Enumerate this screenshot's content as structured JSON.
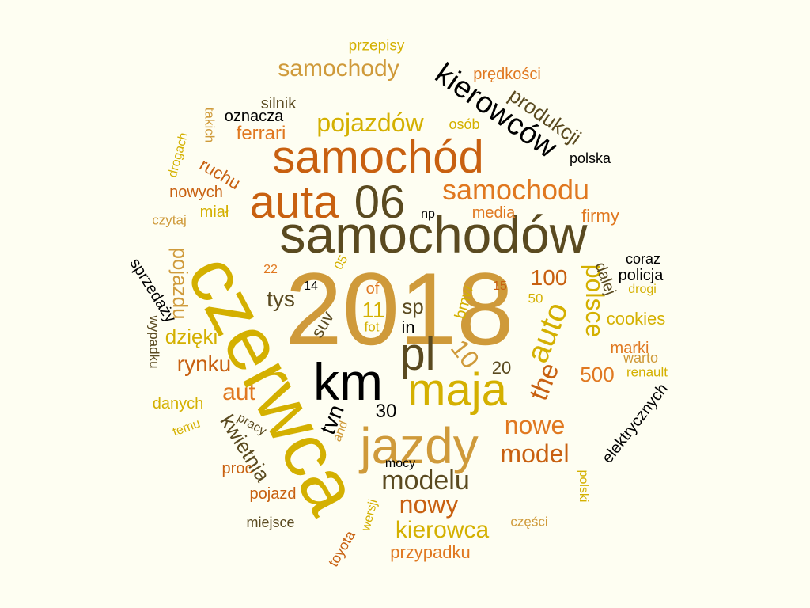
{
  "colors": {
    "background": "#fefef2",
    "palette": [
      "#d4b000",
      "#cf8a30",
      "#c86010",
      "#e07820",
      "#5a4a20",
      "#000000"
    ]
  },
  "words": [
    {
      "text": "2018",
      "color": "#cf9a3a"
    },
    {
      "text": "czerwca",
      "color": "#d4b000"
    },
    {
      "text": "samochodów",
      "color": "#5a4a20"
    },
    {
      "text": "km",
      "color": "#000000"
    },
    {
      "text": "jazdy",
      "color": "#cf9a3a"
    },
    {
      "text": "samochód",
      "color": "#c86010"
    },
    {
      "text": "maja",
      "color": "#d4b000"
    },
    {
      "text": "auta",
      "color": "#c86010"
    },
    {
      "text": "pl",
      "color": "#5a4a20"
    },
    {
      "text": "06",
      "color": "#5a4a20"
    },
    {
      "text": "kierowców",
      "color": "#000000"
    },
    {
      "text": "samochody",
      "color": "#cf9a3a"
    },
    {
      "text": "pojazdów",
      "color": "#d4b000"
    },
    {
      "text": "samochodu",
      "color": "#e07820"
    },
    {
      "text": "auto",
      "color": "#d4b000"
    },
    {
      "text": "polsce",
      "color": "#d4b000"
    },
    {
      "text": "modelu",
      "color": "#5a4a20"
    },
    {
      "text": "model",
      "color": "#c86010"
    },
    {
      "text": "nowe",
      "color": "#e07820"
    },
    {
      "text": "nowy",
      "color": "#c86010"
    },
    {
      "text": "kierowca",
      "color": "#d4b000"
    },
    {
      "text": "the",
      "color": "#c86010"
    },
    {
      "text": "kwietnia",
      "color": "#5a4a20"
    },
    {
      "text": "aut",
      "color": "#e07820"
    },
    {
      "text": "rynku",
      "color": "#c86010"
    },
    {
      "text": "dzięki",
      "color": "#d4b000"
    },
    {
      "text": "pojazdu",
      "color": "#cf9a3a"
    },
    {
      "text": "tys",
      "color": "#5a4a20"
    },
    {
      "text": "sp",
      "color": "#5a4a20"
    },
    {
      "text": "11",
      "color": "#d4b000"
    },
    {
      "text": "10",
      "color": "#cf9a3a"
    },
    {
      "text": "100",
      "color": "#c86010"
    },
    {
      "text": "tvn",
      "color": "#000000"
    },
    {
      "text": "30",
      "color": "#000000"
    },
    {
      "text": "20",
      "color": "#5a4a20"
    },
    {
      "text": "500",
      "color": "#e07820"
    },
    {
      "text": "produkcji",
      "color": "#5a4a20"
    },
    {
      "text": "prędkości",
      "color": "#e07820"
    },
    {
      "text": "przepisy",
      "color": "#d4b000"
    },
    {
      "text": "silnik",
      "color": "#5a4a20"
    },
    {
      "text": "oznacza",
      "color": "#000000"
    },
    {
      "text": "ferrari",
      "color": "#e07820"
    },
    {
      "text": "osób",
      "color": "#d4b000"
    },
    {
      "text": "polska",
      "color": "#000000"
    },
    {
      "text": "takich",
      "color": "#cf9a3a"
    },
    {
      "text": "drogach",
      "color": "#d4b000"
    },
    {
      "text": "ruchu",
      "color": "#c86010"
    },
    {
      "text": "nowych",
      "color": "#c86010"
    },
    {
      "text": "miał",
      "color": "#d4b000"
    },
    {
      "text": "czytaj",
      "color": "#cf9a3a"
    },
    {
      "text": "np",
      "color": "#000000"
    },
    {
      "text": "media",
      "color": "#e07820"
    },
    {
      "text": "firmy",
      "color": "#e07820"
    },
    {
      "text": "coraz",
      "color": "#000000"
    },
    {
      "text": "policja",
      "color": "#000000"
    },
    {
      "text": "dalej",
      "color": "#5a4a20"
    },
    {
      "text": "drogi",
      "color": "#d4b000"
    },
    {
      "text": "cookies",
      "color": "#d4b000"
    },
    {
      "text": "marki",
      "color": "#e07820"
    },
    {
      "text": "warto",
      "color": "#cf9a3a"
    },
    {
      "text": "renault",
      "color": "#d4b000"
    },
    {
      "text": "elektrycznych",
      "color": "#000000"
    },
    {
      "text": "sprzedaży",
      "color": "#000000"
    },
    {
      "text": "wypadku",
      "color": "#5a4a20"
    },
    {
      "text": "danych",
      "color": "#d4b000"
    },
    {
      "text": "temu",
      "color": "#d4b000"
    },
    {
      "text": "pracy",
      "color": "#5a4a20"
    },
    {
      "text": "proc",
      "color": "#c86010"
    },
    {
      "text": "pojazd",
      "color": "#c86010"
    },
    {
      "text": "miejsce",
      "color": "#5a4a20"
    },
    {
      "text": "toyota",
      "color": "#c86010"
    },
    {
      "text": "wersji",
      "color": "#d4b000"
    },
    {
      "text": "and",
      "color": "#cf9a3a"
    },
    {
      "text": "mocy",
      "color": "#000000"
    },
    {
      "text": "przypadku",
      "color": "#e07820"
    },
    {
      "text": "części",
      "color": "#cf9a3a"
    },
    {
      "text": "polski",
      "color": "#d4b000"
    },
    {
      "text": "22",
      "color": "#e07820"
    },
    {
      "text": "14",
      "color": "#000000"
    },
    {
      "text": "05",
      "color": "#d4b000"
    },
    {
      "text": "of",
      "color": "#e07820"
    },
    {
      "text": "suv",
      "color": "#5a4a20"
    },
    {
      "text": "fot",
      "color": "#d4b000"
    },
    {
      "text": "in",
      "color": "#000000"
    },
    {
      "text": "bmw",
      "color": "#d4b000"
    },
    {
      "text": "15",
      "color": "#c86010"
    },
    {
      "text": "50",
      "color": "#d4b000"
    }
  ]
}
